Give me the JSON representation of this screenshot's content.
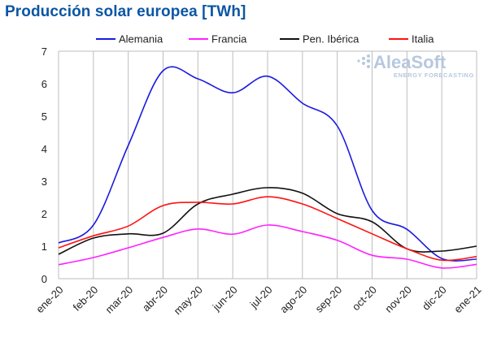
{
  "title": "Producción solar europea [TWh]",
  "logo": {
    "name": "AleaSoft",
    "tagline": "ENERGY FORECASTING",
    "color": "#b7c8de"
  },
  "chart_data": {
    "type": "line",
    "title": "Producción solar europea [TWh]",
    "xlabel": "",
    "ylabel": "",
    "ylim": [
      0,
      7
    ],
    "yticks": [
      0,
      1,
      2,
      3,
      4,
      5,
      6,
      7
    ],
    "grid": "vertical",
    "legend_position": "top",
    "categories": [
      "ene-20",
      "feb-20",
      "mar-20",
      "abr-20",
      "may-20",
      "jun-20",
      "jul-20",
      "ago-20",
      "sep-20",
      "oct-20",
      "nov-20",
      "dic-20",
      "ene-21"
    ],
    "series": [
      {
        "name": "Alemania",
        "color": "#1a1adf",
        "values": [
          1.1,
          1.65,
          4.1,
          6.4,
          6.15,
          5.72,
          6.23,
          5.4,
          4.7,
          2.1,
          1.52,
          0.62,
          0.6
        ]
      },
      {
        "name": "Francia",
        "color": "#ff22ff",
        "values": [
          0.43,
          0.65,
          0.95,
          1.27,
          1.53,
          1.37,
          1.65,
          1.45,
          1.18,
          0.72,
          0.6,
          0.33,
          0.44
        ]
      },
      {
        "name": "Pen. Ibérica",
        "color": "#111111",
        "values": [
          0.75,
          1.25,
          1.38,
          1.4,
          2.3,
          2.6,
          2.8,
          2.63,
          2.0,
          1.75,
          0.92,
          0.85,
          1.0
        ]
      },
      {
        "name": "Italia",
        "color": "#ff1111",
        "values": [
          0.95,
          1.32,
          1.62,
          2.25,
          2.35,
          2.3,
          2.52,
          2.3,
          1.85,
          1.38,
          0.92,
          0.57,
          0.68
        ]
      }
    ]
  }
}
